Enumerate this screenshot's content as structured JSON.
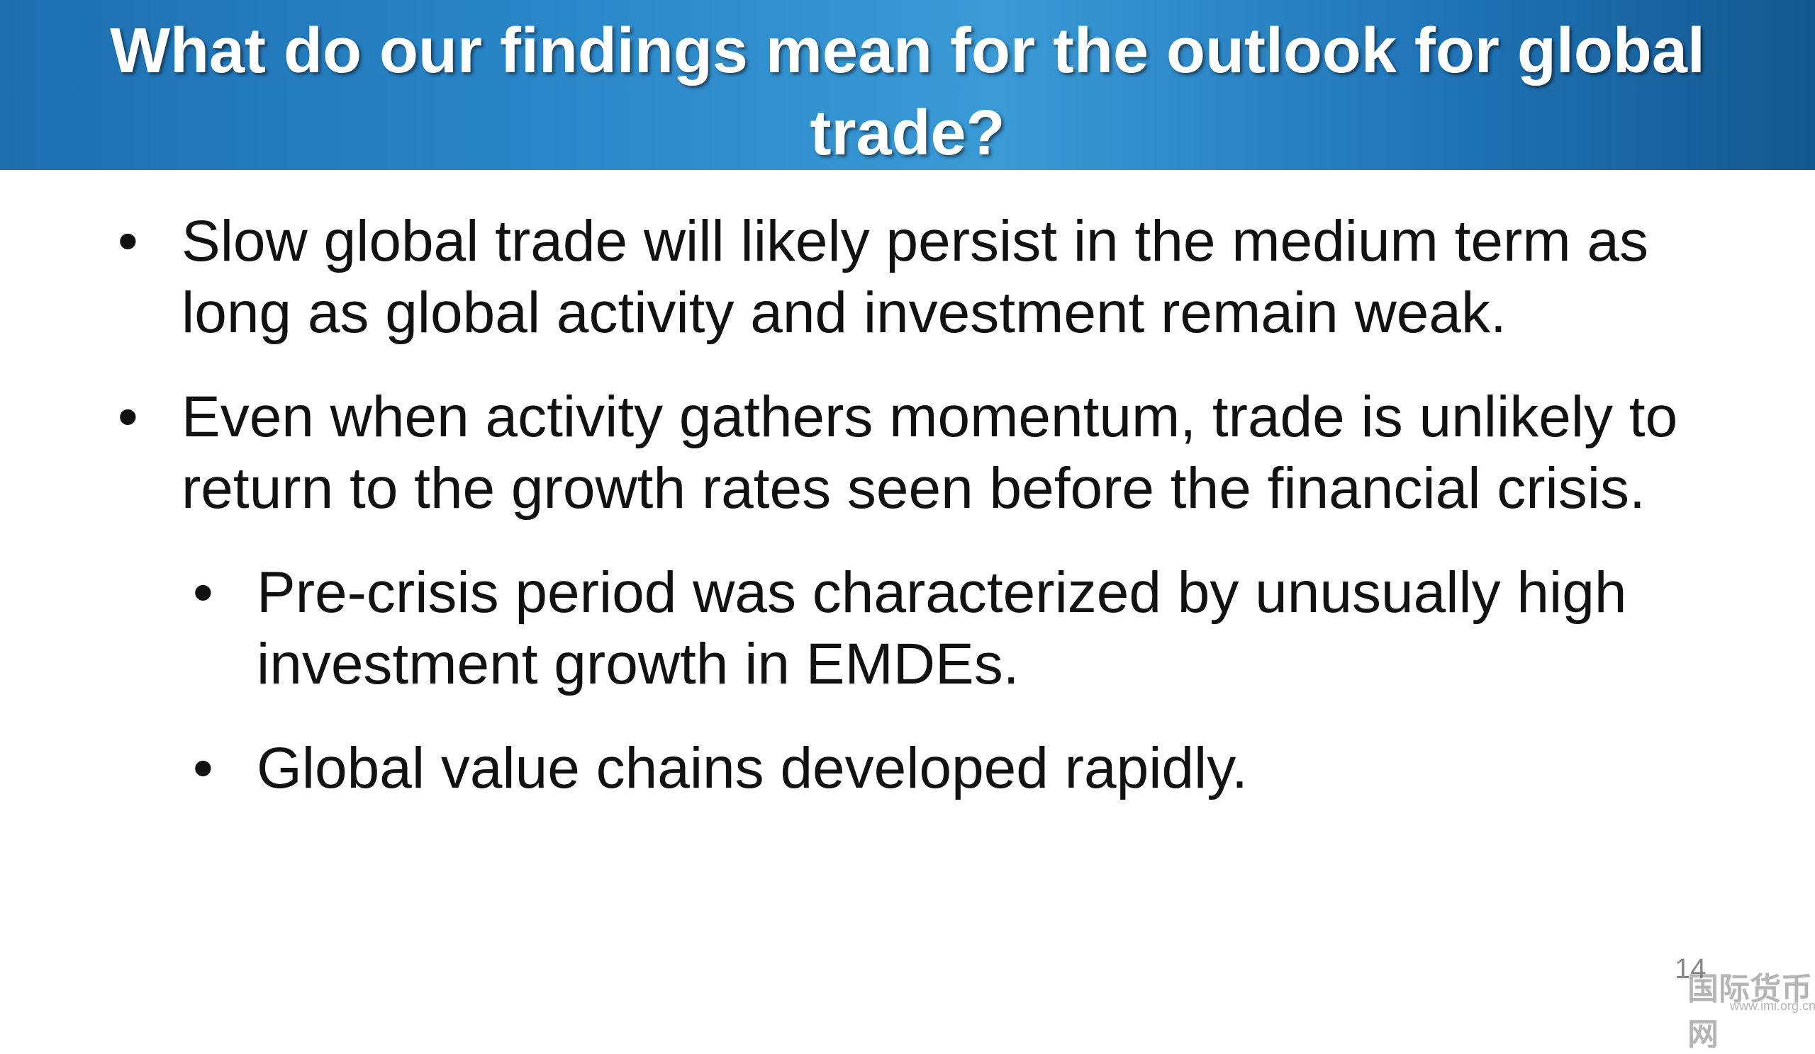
{
  "header": {
    "title": "What do our findings mean for the outlook for global trade?"
  },
  "bullets": [
    {
      "text": "Slow global trade will likely persist in the medium term as long as global activity and investment remain weak.",
      "sub": []
    },
    {
      "text": "Even when activity gathers momentum, trade is unlikely to return to the growth rates seen before the financial crisis.",
      "sub": [
        "Pre-crisis period was characterized by unusually high investment growth in EMDEs.",
        "Global value chains developed rapidly."
      ]
    }
  ],
  "page_number": "14",
  "watermark": {
    "name": "国际货币网",
    "url": "www.imi.org.cn"
  }
}
